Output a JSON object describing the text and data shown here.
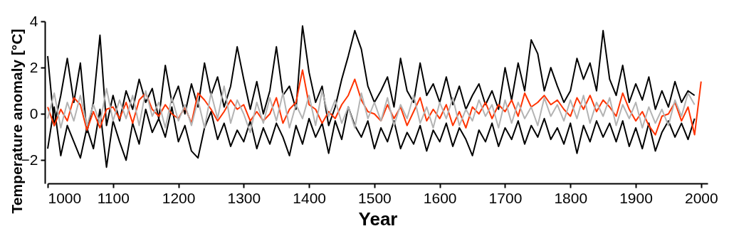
{
  "chart_data": {
    "type": "line",
    "xlabel": "Year",
    "ylabel": "Temperature anomaly [°C]",
    "x": [
      1000,
      1010,
      1020,
      1030,
      1040,
      1050,
      1060,
      1070,
      1080,
      1090,
      1100,
      1110,
      1120,
      1130,
      1140,
      1150,
      1160,
      1170,
      1180,
      1190,
      1200,
      1210,
      1220,
      1230,
      1240,
      1250,
      1260,
      1270,
      1280,
      1290,
      1300,
      1310,
      1320,
      1330,
      1340,
      1350,
      1360,
      1370,
      1380,
      1390,
      1400,
      1410,
      1420,
      1430,
      1440,
      1450,
      1460,
      1470,
      1480,
      1490,
      1500,
      1510,
      1520,
      1530,
      1540,
      1550,
      1560,
      1570,
      1580,
      1590,
      1600,
      1610,
      1620,
      1630,
      1640,
      1650,
      1660,
      1670,
      1680,
      1690,
      1700,
      1710,
      1720,
      1730,
      1740,
      1750,
      1760,
      1770,
      1780,
      1790,
      1800,
      1810,
      1820,
      1830,
      1840,
      1850,
      1860,
      1870,
      1880,
      1890,
      1900,
      1910,
      1920,
      1930,
      1940,
      1950,
      1960,
      1970,
      1980,
      1990,
      2000
    ],
    "series": [
      {
        "color": "#000000",
        "values": [
          2.5,
          -0.5,
          0.8,
          2.4,
          0.5,
          2.2,
          -0.8,
          0.5,
          3.4,
          -0.5,
          0.8,
          -0.3,
          1.0,
          0.2,
          1.5,
          0.5,
          1.1,
          -0.2,
          2.1,
          0.5,
          1.2,
          0.0,
          1.3,
          0.3,
          2.2,
          0.8,
          1.6,
          0.3,
          1.2,
          2.9,
          1.5,
          0.2,
          1.4,
          0.0,
          1.0,
          2.9,
          0.8,
          1.2,
          0.2,
          3.8,
          1.8,
          0.5,
          1.2,
          -0.5,
          0.3,
          1.5,
          2.5,
          3.6,
          2.8,
          1.2,
          0.5,
          1.0,
          1.6,
          0.3,
          2.4,
          1.0,
          0.5,
          2.2,
          0.8,
          1.3,
          0.5,
          1.6,
          0.4,
          1.2,
          0.2,
          0.8,
          1.3,
          0.4,
          1.0,
          0.2,
          2.0,
          0.6,
          2.2,
          1.0,
          3.2,
          2.6,
          1.0,
          2.0,
          1.2,
          0.5,
          1.0,
          2.4,
          1.5,
          2.2,
          1.0,
          3.6,
          1.5,
          0.8,
          2.1,
          0.5,
          1.3,
          0.6,
          1.6,
          0.2,
          1.0,
          0.3,
          1.4,
          0.5,
          1.0,
          0.8,
          null
        ]
      },
      {
        "color": "#000000",
        "values": [
          -1.5,
          0.3,
          -1.8,
          -0.5,
          -1.2,
          -1.9,
          -0.6,
          -1.5,
          0.2,
          -2.3,
          -0.3,
          -1.2,
          -2.0,
          -0.4,
          -1.3,
          0.2,
          -0.8,
          -0.2,
          -1.0,
          0.3,
          -1.2,
          -0.5,
          -1.6,
          -1.9,
          -0.6,
          0.1,
          -1.1,
          -0.4,
          -1.4,
          -0.7,
          -1.2,
          -0.3,
          -1.5,
          -0.6,
          -1.3,
          -0.4,
          -1.0,
          -1.8,
          -0.5,
          -1.3,
          -0.2,
          -1.0,
          -0.4,
          -1.7,
          -0.3,
          -1.1,
          0.3,
          -0.5,
          -1.0,
          -0.3,
          -1.5,
          -0.6,
          -1.2,
          -0.3,
          -1.5,
          -0.8,
          -1.3,
          -0.5,
          -1.6,
          -0.7,
          -1.2,
          -0.4,
          -1.4,
          -0.6,
          -1.1,
          -1.8,
          -0.7,
          -1.2,
          -0.4,
          -1.4,
          -0.6,
          -1.1,
          -0.3,
          -1.3,
          -0.5,
          -1.0,
          -0.2,
          -1.1,
          -0.6,
          -1.3,
          -0.4,
          -1.7,
          -0.5,
          -1.2,
          -0.3,
          -1.0,
          -0.4,
          -1.2,
          -0.3,
          -1.4,
          -0.6,
          -1.5,
          -0.4,
          -1.6,
          -0.8,
          -0.3,
          -1.0,
          -0.4,
          -1.1,
          -0.2,
          null
        ]
      },
      {
        "color": "#ff3300",
        "values": [
          0.3,
          -0.5,
          0.2,
          -0.3,
          0.7,
          0.4,
          -0.7,
          0.1,
          -0.6,
          0.2,
          0.3,
          -0.2,
          0.5,
          -0.4,
          0.6,
          0.9,
          0.2,
          -0.1,
          0.4,
          0.0,
          -0.2,
          0.3,
          -0.4,
          0.9,
          0.6,
          0.2,
          -0.3,
          0.1,
          0.6,
          0.2,
          0.4,
          -0.3,
          0.1,
          -0.3,
          0.0,
          0.7,
          -0.4,
          0.2,
          0.5,
          1.9,
          0.4,
          0.2,
          -0.4,
          0.1,
          -0.2,
          0.4,
          0.8,
          1.5,
          0.6,
          0.1,
          0.0,
          -0.3,
          0.4,
          -0.2,
          0.3,
          -0.5,
          0.1,
          0.7,
          -0.3,
          0.2,
          -0.2,
          0.4,
          -0.5,
          0.1,
          -0.6,
          0.3,
          0.0,
          0.5,
          -0.2,
          0.4,
          0.1,
          0.6,
          -0.1,
          0.9,
          0.3,
          0.5,
          0.8,
          0.4,
          0.6,
          0.2,
          -0.1,
          0.7,
          0.2,
          0.8,
          0.1,
          0.6,
          0.3,
          -0.1,
          0.9,
          0.2,
          -0.3,
          0.1,
          -0.5,
          -0.9,
          -0.1,
          0.0,
          0.5,
          -0.3,
          0.3,
          -0.9,
          1.4
        ]
      },
      {
        "color": "#b3b3b3",
        "values": [
          -0.2,
          0.9,
          -0.6,
          0.5,
          -0.3,
          0.8,
          -0.5,
          0.4,
          -0.4,
          1.1,
          -0.3,
          0.6,
          -0.2,
          0.8,
          -0.5,
          1.0,
          -0.1,
          0.5,
          -0.6,
          0.7,
          -0.3,
          0.4,
          -0.5,
          0.6,
          -0.6,
          0.9,
          -0.2,
          1.2,
          -0.4,
          0.6,
          0.0,
          -0.8,
          0.5,
          -0.4,
          0.7,
          -0.3,
          0.9,
          -0.6,
          0.4,
          -0.2,
          0.8,
          -0.5,
          1.0,
          -0.1,
          0.6,
          -0.4,
          0.3,
          -0.6,
          0.9,
          -0.2,
          0.5,
          -0.3,
          0.7,
          -0.5,
          0.4,
          -0.2,
          0.8,
          -0.4,
          0.3,
          -0.6,
          0.5,
          -0.2,
          0.7,
          -0.5,
          0.2,
          -0.3,
          0.6,
          -0.1,
          0.4,
          -0.6,
          0.6,
          -0.4,
          0.5,
          -0.2,
          0.3,
          -0.5,
          0.7,
          -0.1,
          0.4,
          -0.3,
          0.6,
          -0.2,
          0.8,
          -0.4,
          0.5,
          -0.1,
          0.7,
          -0.5,
          0.4,
          -0.2,
          0.5,
          -0.6,
          0.3,
          -0.4,
          0.2,
          -0.5,
          0.6,
          -0.1,
          0.9,
          0.4,
          null
        ]
      }
    ],
    "xlim": [
      1000,
      2010
    ],
    "ylim": [
      -3,
      4
    ],
    "xticks": [
      1000,
      1100,
      1200,
      1300,
      1400,
      1500,
      1600,
      1700,
      1800,
      1900,
      2000
    ],
    "yticks": [
      -2,
      0,
      2,
      4
    ]
  }
}
